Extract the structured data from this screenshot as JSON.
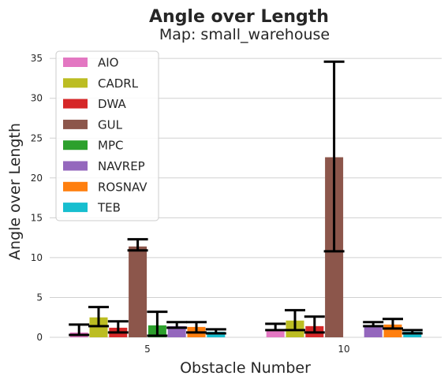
{
  "chart_data": {
    "type": "bar",
    "title": "Angle over Length",
    "subtitle": "Map: small_warehouse",
    "xlabel": "Obstacle Number",
    "ylabel": "Angle over Length",
    "categories": [
      "5",
      "10"
    ],
    "ylim": [
      0,
      36.5
    ],
    "yticks": [
      0,
      5,
      10,
      15,
      20,
      25,
      30,
      35
    ],
    "grid": "horizontal",
    "legend_position": "top-left",
    "series": [
      {
        "name": "AIO",
        "color": "#e377c2",
        "values": [
          0.6,
          0.8
        ],
        "err_low": [
          0.3,
          0.9
        ],
        "err_high": [
          1.6,
          1.7
        ]
      },
      {
        "name": "CADRL",
        "color": "#bcbd22",
        "values": [
          2.5,
          2.1
        ],
        "err_low": [
          1.4,
          0.9
        ],
        "err_high": [
          3.8,
          3.4
        ]
      },
      {
        "name": "DWA",
        "color": "#d62728",
        "values": [
          1.2,
          1.4
        ],
        "err_low": [
          0.6,
          0.6
        ],
        "err_high": [
          2.0,
          2.6
        ]
      },
      {
        "name": "GUL",
        "color": "#8c564b",
        "values": [
          11.4,
          22.6
        ],
        "err_low": [
          10.9,
          10.8
        ],
        "err_high": [
          12.3,
          34.6
        ]
      },
      {
        "name": "MPC",
        "color": "#2ca02c",
        "values": [
          1.5,
          0.0
        ],
        "err_low": [
          0.2,
          0.0
        ],
        "err_high": [
          3.2,
          0.0
        ]
      },
      {
        "name": "NAVREP",
        "color": "#9467bd",
        "values": [
          1.4,
          1.5
        ],
        "err_low": [
          1.2,
          1.4
        ],
        "err_high": [
          1.9,
          1.9
        ]
      },
      {
        "name": "ROSNAV",
        "color": "#ff7f0e",
        "values": [
          1.3,
          1.6
        ],
        "err_low": [
          0.6,
          1.1
        ],
        "err_high": [
          1.9,
          2.3
        ]
      },
      {
        "name": "TEB",
        "color": "#17becf",
        "values": [
          0.7,
          0.7
        ],
        "err_low": [
          0.5,
          0.5
        ],
        "err_high": [
          1.0,
          0.9
        ]
      }
    ]
  }
}
